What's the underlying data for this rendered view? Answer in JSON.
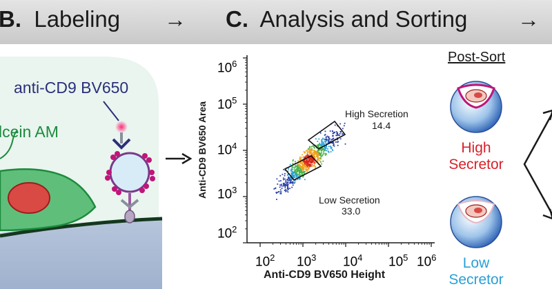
{
  "header": {
    "labeling": {
      "letter": "B.",
      "title": "Labeling"
    },
    "analysis": {
      "letter": "C.",
      "title": "Analysis and Sorting"
    },
    "arrow": "→"
  },
  "labeling_panel": {
    "antibody_label": "anti-CD9 BV650",
    "dye_label": "lcein AM"
  },
  "flow_plot": {
    "y_axis_label": "Anti-CD9 BV650 Area",
    "x_axis_label": "Anti-CD9 BV650 Height",
    "y_ticks": [
      {
        "base": "10",
        "exp": "6"
      },
      {
        "base": "10",
        "exp": "5"
      },
      {
        "base": "10",
        "exp": "4"
      },
      {
        "base": "10",
        "exp": "3"
      },
      {
        "base": "10",
        "exp": "2"
      }
    ],
    "x_ticks": [
      {
        "base": "10",
        "exp": "2"
      },
      {
        "base": "10",
        "exp": "3"
      },
      {
        "base": "10",
        "exp": "4"
      },
      {
        "base": "10",
        "exp": "5"
      },
      {
        "base": "10",
        "exp": "6"
      }
    ],
    "gates": {
      "high": {
        "label": "High Secretion",
        "value": "14.4"
      },
      "low": {
        "label": "Low Secretion",
        "value": "33.0"
      }
    }
  },
  "post_sort": {
    "title": "Post-Sort",
    "high": {
      "line1": "High",
      "line2": "Secretor",
      "color": "#d9202a"
    },
    "low": {
      "line1": "Low",
      "line2": "Secretor",
      "color": "#2a9fd6"
    }
  },
  "colors": {
    "navy": "#2b2f7a",
    "green": "#1d8a3e",
    "magenta": "#c0157a",
    "red": "#d9202a",
    "cyan": "#2a9fd6"
  }
}
